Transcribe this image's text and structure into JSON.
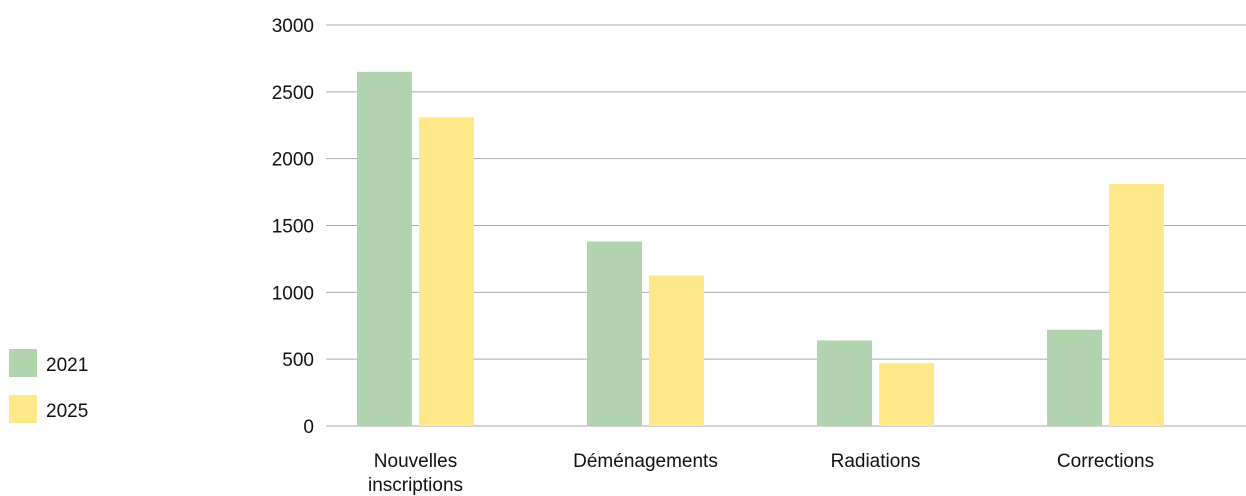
{
  "chart_data": {
    "type": "bar",
    "categories": [
      "Nouvelles inscriptions",
      "Déménagements",
      "Radiations",
      "Corrections"
    ],
    "series": [
      {
        "name": "2021",
        "color": "#b1d3ae",
        "values": [
          2650,
          1380,
          640,
          720
        ]
      },
      {
        "name": "2025",
        "color": "#fde98a",
        "values": [
          2310,
          1125,
          470,
          1810
        ]
      }
    ],
    "ylim": [
      0,
      3000
    ],
    "yticks": [
      0,
      500,
      1000,
      1500,
      2000,
      2500,
      3000
    ],
    "grid": true,
    "legend_position": "left"
  }
}
